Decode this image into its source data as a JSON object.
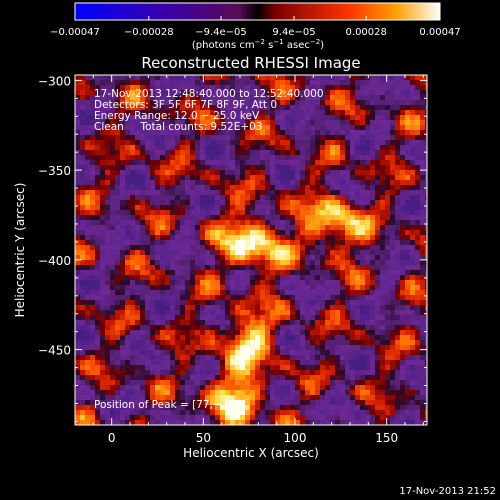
{
  "chart_data": {
    "type": "heatmap",
    "title": "Reconstructed RHESSI Image",
    "xlabel": "Heliocentric X (arcsec)",
    "ylabel": "Heliocentric Y (arcsec)",
    "xlim": [
      -20,
      172
    ],
    "ylim": [
      -492,
      -297
    ],
    "x_ticks": [
      0,
      50,
      100,
      150
    ],
    "y_ticks": [
      -300,
      -350,
      -400,
      -450
    ],
    "x_tick_labels": [
      "0",
      "50",
      "100",
      "150"
    ],
    "y_tick_labels": [
      "−300",
      "−350",
      "−400",
      "−450"
    ],
    "colorbar": {
      "min": -0.00047,
      "max": 0.00047,
      "tick_values": [
        -0.00047,
        -0.00028,
        -9.4e-05,
        9.4e-05,
        0.00028,
        0.00047
      ],
      "tick_labels": [
        "−0.00047",
        "−0.00028",
        "−9.4e−05",
        "9.4e−05",
        "0.00028",
        "0.00047"
      ],
      "unit_prefix": "(photons cm",
      "unit_exp1": "−2",
      "unit_mid": " s",
      "unit_exp2": "−1",
      "unit_mid2": " asec",
      "unit_exp3": "−2",
      "unit_suffix": ")"
    },
    "sources": [
      {
        "x": 77,
        "y": -391,
        "intensity": 1.0
      },
      {
        "x": 122,
        "y": -380,
        "intensity": 0.85
      },
      {
        "x": 74,
        "y": -444,
        "intensity": 0.75
      },
      {
        "x": 68,
        "y": -476,
        "intensity": 0.8
      }
    ],
    "annotation": {
      "line1": "17-Nov-2013 12:48:40.000 to 12:52:40.000",
      "line2": "Detectors: 3F 5F 6F 7F 8F 9F, Att 0",
      "line3": "Energy Range: 12.0 − 25.0 keV",
      "line4": "Clean     Total counts: 9.52E+03",
      "peak": "Position of Peak = [77,−391]"
    }
  },
  "footer_timestamp": "17-Nov-2013 21:52"
}
